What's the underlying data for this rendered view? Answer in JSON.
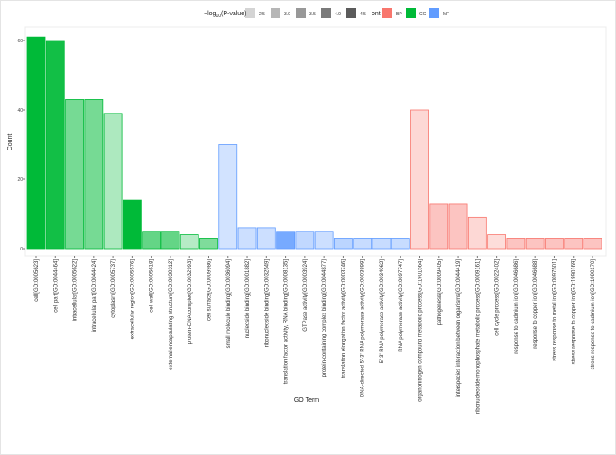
{
  "chart_data": {
    "type": "bar",
    "xlabel": "GO Term",
    "ylabel": "Count",
    "ylim": [
      0,
      63
    ],
    "yticks": [
      0,
      20,
      40,
      60
    ],
    "legend": {
      "alpha_title": "−log10(P-value)",
      "alpha_title_main": "−log",
      "alpha_title_sub": "10",
      "alpha_title_rest": "(P-value)",
      "alpha_levels": [
        "2.5",
        "3.0",
        "3.5",
        "4.0",
        "4.5"
      ],
      "color_title": "ont",
      "categories": [
        {
          "name": "BP",
          "color": "#F8766D"
        },
        {
          "name": "CC",
          "color": "#00BA38"
        },
        {
          "name": "MF",
          "color": "#619CFF"
        }
      ],
      "placement": "top"
    },
    "bars": [
      {
        "term": "cell[GO:0005623]",
        "count": 61,
        "ont": "CC",
        "logp": 4.6
      },
      {
        "term": "cell part[GO:0044464]",
        "count": 60,
        "ont": "CC",
        "logp": 4.4
      },
      {
        "term": "intracellular[GO:0005622]",
        "count": 43,
        "ont": "CC",
        "logp": 3.3
      },
      {
        "term": "intracellular part[GO:0044424]",
        "count": 43,
        "ont": "CC",
        "logp": 3.3
      },
      {
        "term": "cytoplasm[GO:0005737]",
        "count": 39,
        "ont": "CC",
        "logp": 2.7
      },
      {
        "term": "extracellular region[GO:0005576]",
        "count": 14,
        "ont": "CC",
        "logp": 4.6
      },
      {
        "term": "cell wall[GO:0005618]",
        "count": 5,
        "ont": "CC",
        "logp": 3.5
      },
      {
        "term": "external encapsulating structure[GO:0030312]",
        "count": 5,
        "ont": "CC",
        "logp": 3.5
      },
      {
        "term": "protein-DNA complex[GO:0032993]",
        "count": 4,
        "ont": "CC",
        "logp": 2.6
      },
      {
        "term": "cell surface[GO:0009986]",
        "count": 3,
        "ont": "CC",
        "logp": 3.2
      },
      {
        "term": "small molecule binding[GO:0036094]",
        "count": 30,
        "ont": "MF",
        "logp": 2.6
      },
      {
        "term": "nucleoside binding[GO:0001882]",
        "count": 6,
        "ont": "MF",
        "logp": 2.7
      },
      {
        "term": "ribonucleoside binding[GO:0032549]",
        "count": 6,
        "ont": "MF",
        "logp": 2.7
      },
      {
        "term": "translation factor activity, RNA binding[GO:0008135]",
        "count": 5,
        "ont": "MF",
        "logp": 4.2
      },
      {
        "term": "GTPase activity[GO:0003924]",
        "count": 5,
        "ont": "MF",
        "logp": 2.9
      },
      {
        "term": "protein-containing complex binding[GO:0044877]",
        "count": 5,
        "ont": "MF",
        "logp": 2.7
      },
      {
        "term": "translation elongation factor activity[GO:0003746]",
        "count": 3,
        "ont": "MF",
        "logp": 3.0
      },
      {
        "term": "DNA-directed 5'-3' RNA polymerase activity[GO:0003899]",
        "count": 3,
        "ont": "MF",
        "logp": 2.8
      },
      {
        "term": "5'-3' RNA polymerase activity[GO:0034062]",
        "count": 3,
        "ont": "MF",
        "logp": 2.8
      },
      {
        "term": "RNA polymerase activity[GO:0097747]",
        "count": 3,
        "ont": "MF",
        "logp": 2.8
      },
      {
        "term": "organonitrogen compound metabolic process[GO:1901564]",
        "count": 40,
        "ont": "BP",
        "logp": 2.6
      },
      {
        "term": "pathogenesis[GO:0009405]",
        "count": 13,
        "ont": "BP",
        "logp": 3.0
      },
      {
        "term": "interspecies interaction between organisms[GO:0044419]",
        "count": 13,
        "ont": "BP",
        "logp": 3.0
      },
      {
        "term": "ribonucleoside monophosphate metabolic process[GO:0009161]",
        "count": 9,
        "ont": "BP",
        "logp": 2.6
      },
      {
        "term": "cell cycle process[GO:0022402]",
        "count": 4,
        "ont": "BP",
        "logp": 2.5
      },
      {
        "term": "response to cadmium ion[GO:0046686]",
        "count": 3,
        "ont": "BP",
        "logp": 3.0
      },
      {
        "term": "response to copper ion[GO:0046688]",
        "count": 3,
        "ont": "BP",
        "logp": 3.0
      },
      {
        "term": "stress response to metal ion[GO:0097501]",
        "count": 3,
        "ont": "BP",
        "logp": 3.0
      },
      {
        "term": "stress response to copper ion[GO:1990169]",
        "count": 3,
        "ont": "BP",
        "logp": 3.0
      },
      {
        "term": "stress response to cadmium ion[GO:1990170]",
        "count": 3,
        "ont": "BP",
        "logp": 3.0
      }
    ]
  }
}
